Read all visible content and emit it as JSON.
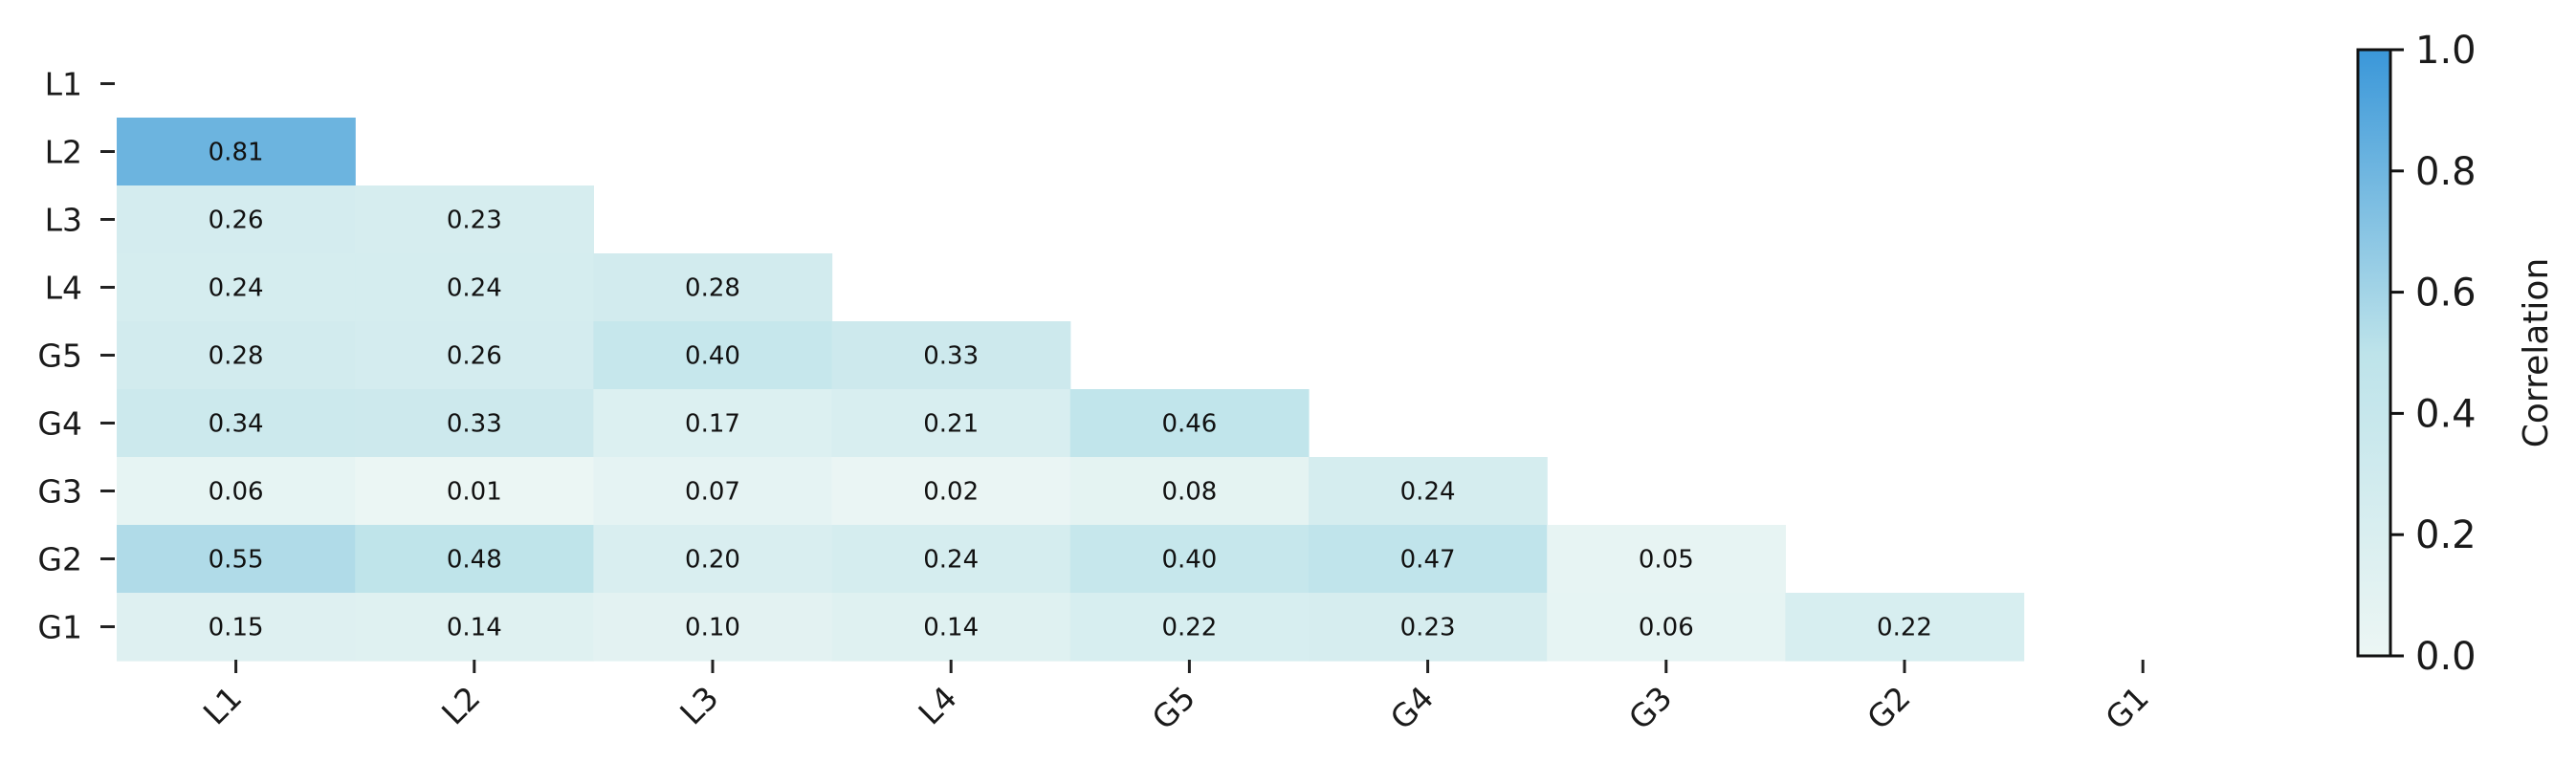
{
  "chart_data": {
    "type": "heatmap",
    "title": "",
    "rows": [
      "L1",
      "L2",
      "L3",
      "L4",
      "G5",
      "G4",
      "G3",
      "G2",
      "G1"
    ],
    "columns": [
      "L1",
      "L2",
      "L3",
      "L4",
      "G5",
      "G4",
      "G3",
      "G2",
      "G1"
    ],
    "mask": "lower-triangle",
    "values": [
      [],
      [
        0.81
      ],
      [
        0.26,
        0.23
      ],
      [
        0.24,
        0.24,
        0.28
      ],
      [
        0.28,
        0.26,
        0.4,
        0.33
      ],
      [
        0.34,
        0.33,
        0.17,
        0.21,
        0.46
      ],
      [
        0.06,
        0.01,
        0.07,
        0.02,
        0.08,
        0.24
      ],
      [
        0.55,
        0.48,
        0.2,
        0.24,
        0.4,
        0.47,
        0.05
      ],
      [
        0.15,
        0.14,
        0.1,
        0.14,
        0.22,
        0.23,
        0.06,
        0.22
      ]
    ],
    "value_format": "0.00",
    "colorbar": {
      "label": "Correlation",
      "range": [
        0.0,
        1.0
      ],
      "ticks": [
        "0.0",
        "0.2",
        "0.4",
        "0.6",
        "0.8",
        "1.0"
      ],
      "colors": [
        "#ecf6f4",
        "#bde3ea",
        "#3a97d9"
      ]
    },
    "grid": false
  }
}
